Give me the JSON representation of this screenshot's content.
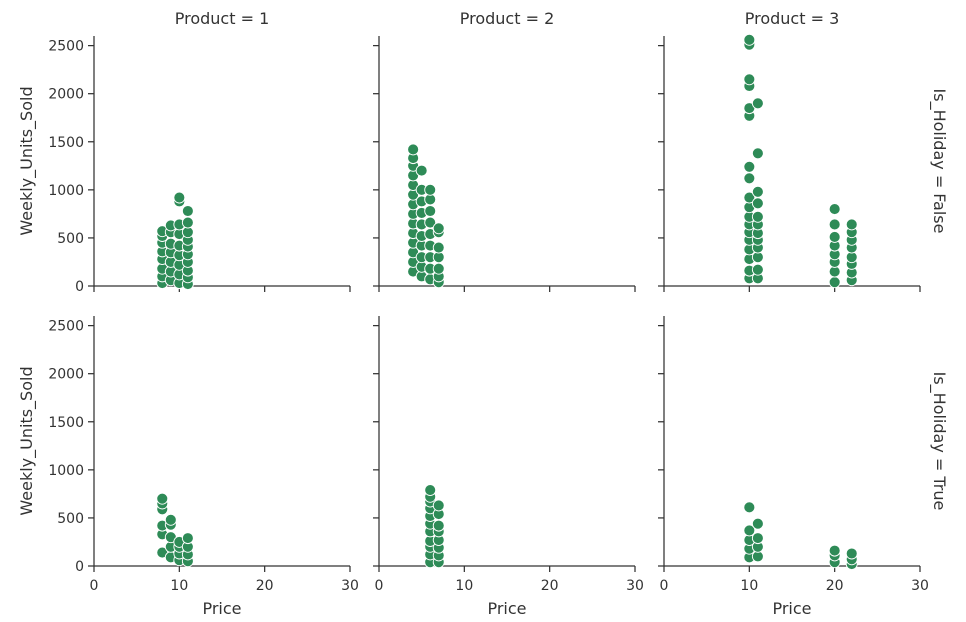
{
  "chart_data": {
    "type": "scatter",
    "facets": {
      "col_labels": [
        "Product = 1",
        "Product = 2",
        "Product = 3"
      ],
      "row_labels": [
        "Is_Holiday = False",
        "Is_Holiday = True"
      ]
    },
    "xlabel": "Price",
    "ylabel": "Weekly_Units_Sold",
    "xlim": [
      0,
      30
    ],
    "ylim": [
      0,
      2600
    ],
    "xticks": [
      "0",
      "10",
      "20",
      "30"
    ],
    "yticks": [
      "0",
      "500",
      "1000",
      "1500",
      "2000",
      "2500"
    ],
    "grid": false,
    "legend": "none",
    "marker_color": "#2e8b57",
    "marker_edge_color": "#ffffff",
    "panels": [
      {
        "product": 1,
        "is_holiday": false,
        "points": [
          [
            8,
            30
          ],
          [
            8,
            100
          ],
          [
            8,
            180
          ],
          [
            8,
            280
          ],
          [
            8,
            360
          ],
          [
            8,
            450
          ],
          [
            8,
            520
          ],
          [
            8,
            570
          ],
          [
            9,
            60
          ],
          [
            9,
            150
          ],
          [
            9,
            250
          ],
          [
            9,
            350
          ],
          [
            9,
            440
          ],
          [
            9,
            560
          ],
          [
            9,
            630
          ],
          [
            10,
            30
          ],
          [
            10,
            120
          ],
          [
            10,
            220
          ],
          [
            10,
            320
          ],
          [
            10,
            420
          ],
          [
            10,
            540
          ],
          [
            10,
            640
          ],
          [
            10,
            880
          ],
          [
            10,
            920
          ],
          [
            11,
            20
          ],
          [
            11,
            90
          ],
          [
            11,
            160
          ],
          [
            11,
            250
          ],
          [
            11,
            330
          ],
          [
            11,
            410
          ],
          [
            11,
            480
          ],
          [
            11,
            560
          ],
          [
            11,
            660
          ],
          [
            11,
            780
          ]
        ]
      },
      {
        "product": 2,
        "is_holiday": false,
        "points": [
          [
            4,
            150
          ],
          [
            4,
            250
          ],
          [
            4,
            350
          ],
          [
            4,
            450
          ],
          [
            4,
            550
          ],
          [
            4,
            650
          ],
          [
            4,
            750
          ],
          [
            4,
            850
          ],
          [
            4,
            950
          ],
          [
            4,
            1050
          ],
          [
            4,
            1150
          ],
          [
            4,
            1250
          ],
          [
            4,
            1330
          ],
          [
            4,
            1420
          ],
          [
            5,
            100
          ],
          [
            5,
            200
          ],
          [
            5,
            300
          ],
          [
            5,
            420
          ],
          [
            5,
            520
          ],
          [
            5,
            640
          ],
          [
            5,
            760
          ],
          [
            5,
            880
          ],
          [
            5,
            1000
          ],
          [
            5,
            1200
          ],
          [
            6,
            70
          ],
          [
            6,
            180
          ],
          [
            6,
            300
          ],
          [
            6,
            420
          ],
          [
            6,
            540
          ],
          [
            6,
            660
          ],
          [
            6,
            780
          ],
          [
            6,
            900
          ],
          [
            6,
            1000
          ],
          [
            7,
            40
          ],
          [
            7,
            100
          ],
          [
            7,
            180
          ],
          [
            7,
            300
          ],
          [
            7,
            400
          ],
          [
            7,
            560
          ],
          [
            7,
            600
          ]
        ]
      },
      {
        "product": 3,
        "is_holiday": false,
        "points": [
          [
            10,
            80
          ],
          [
            10,
            160
          ],
          [
            10,
            280
          ],
          [
            10,
            380
          ],
          [
            10,
            480
          ],
          [
            10,
            560
          ],
          [
            10,
            640
          ],
          [
            10,
            720
          ],
          [
            10,
            820
          ],
          [
            10,
            920
          ],
          [
            10,
            1120
          ],
          [
            10,
            1240
          ],
          [
            10,
            1770
          ],
          [
            10,
            1850
          ],
          [
            10,
            2080
          ],
          [
            10,
            2150
          ],
          [
            10,
            2510
          ],
          [
            10,
            2560
          ],
          [
            11,
            80
          ],
          [
            11,
            170
          ],
          [
            11,
            300
          ],
          [
            11,
            400
          ],
          [
            11,
            480
          ],
          [
            11,
            550
          ],
          [
            11,
            640
          ],
          [
            11,
            720
          ],
          [
            11,
            860
          ],
          [
            11,
            980
          ],
          [
            11,
            1380
          ],
          [
            11,
            1900
          ],
          [
            20,
            40
          ],
          [
            20,
            150
          ],
          [
            20,
            250
          ],
          [
            20,
            330
          ],
          [
            20,
            420
          ],
          [
            20,
            510
          ],
          [
            20,
            640
          ],
          [
            20,
            800
          ],
          [
            22,
            60
          ],
          [
            22,
            140
          ],
          [
            22,
            230
          ],
          [
            22,
            300
          ],
          [
            22,
            400
          ],
          [
            22,
            480
          ],
          [
            22,
            560
          ],
          [
            22,
            640
          ]
        ]
      },
      {
        "product": 1,
        "is_holiday": true,
        "points": [
          [
            8,
            140
          ],
          [
            8,
            330
          ],
          [
            8,
            420
          ],
          [
            8,
            590
          ],
          [
            8,
            650
          ],
          [
            8,
            700
          ],
          [
            9,
            90
          ],
          [
            9,
            200
          ],
          [
            9,
            300
          ],
          [
            9,
            430
          ],
          [
            9,
            480
          ],
          [
            10,
            60
          ],
          [
            10,
            130
          ],
          [
            10,
            200
          ],
          [
            10,
            250
          ],
          [
            11,
            50
          ],
          [
            11,
            120
          ],
          [
            11,
            200
          ],
          [
            11,
            290
          ]
        ]
      },
      {
        "product": 2,
        "is_holiday": true,
        "points": [
          [
            6,
            40
          ],
          [
            6,
            120
          ],
          [
            6,
            200
          ],
          [
            6,
            260
          ],
          [
            6,
            360
          ],
          [
            6,
            440
          ],
          [
            6,
            520
          ],
          [
            6,
            600
          ],
          [
            6,
            670
          ],
          [
            6,
            720
          ],
          [
            6,
            790
          ],
          [
            7,
            40
          ],
          [
            7,
            110
          ],
          [
            7,
            190
          ],
          [
            7,
            270
          ],
          [
            7,
            360
          ],
          [
            7,
            420
          ],
          [
            7,
            540
          ],
          [
            7,
            630
          ]
        ]
      },
      {
        "product": 3,
        "is_holiday": true,
        "points": [
          [
            10,
            90
          ],
          [
            10,
            180
          ],
          [
            10,
            270
          ],
          [
            10,
            370
          ],
          [
            10,
            610
          ],
          [
            11,
            100
          ],
          [
            11,
            200
          ],
          [
            11,
            290
          ],
          [
            11,
            440
          ],
          [
            20,
            40
          ],
          [
            20,
            110
          ],
          [
            20,
            160
          ],
          [
            22,
            20
          ],
          [
            22,
            70
          ],
          [
            22,
            130
          ]
        ]
      }
    ]
  }
}
